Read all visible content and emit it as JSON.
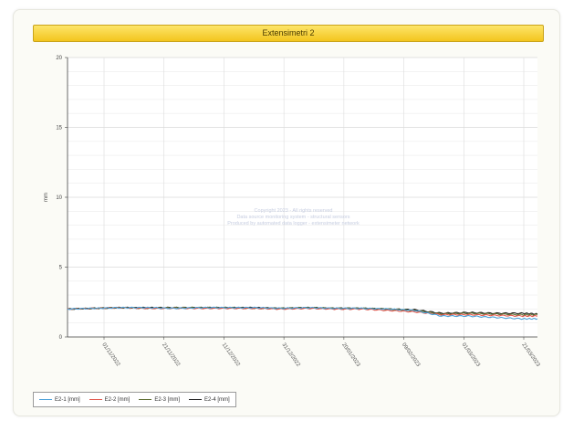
{
  "header": {
    "title": "Extensimetri 2"
  },
  "watermark": {
    "line1": "Copyright 2023 - All rights reserved",
    "line2": "Data source monitoring system - structural sensors",
    "line3": "Produced by automated data logger - extensimeter network"
  },
  "chart_data": {
    "type": "line",
    "title": "Extensimetri 2",
    "xlabel": "",
    "ylabel": "mm",
    "ylim": [
      0,
      20
    ],
    "yticks": [
      0,
      5,
      10,
      15,
      20
    ],
    "xticks": [
      "01/11/2022",
      "21/11/2022",
      "11/12/2022",
      "31/12/2022",
      "20/01/2023",
      "09/02/2023",
      "01/03/2023",
      "21/03/2023"
    ],
    "grid": true,
    "legend_position": "bottom-left",
    "x": [
      0,
      0.5,
      1,
      1.5,
      2,
      2.5,
      3,
      3.5,
      4,
      4.5,
      5,
      5.5,
      6,
      6.5,
      7,
      7.5,
      8,
      8.5,
      8.8
    ],
    "series": [
      {
        "name": "E2-1 [mm]",
        "color": "#4aa0d8",
        "values": [
          2.0,
          2.05,
          2.1,
          2.1,
          2.05,
          2.1,
          2.1,
          2.1,
          2.05,
          2.1,
          2.05,
          2.05,
          2.0,
          1.9,
          1.5,
          1.5,
          1.4,
          1.3,
          1.3
        ]
      },
      {
        "name": "E2-2 [mm]",
        "color": "#e2574c",
        "values": [
          2.0,
          2.05,
          2.1,
          2.05,
          2.05,
          2.05,
          2.05,
          2.05,
          2.0,
          2.05,
          2.0,
          2.0,
          1.9,
          1.8,
          1.6,
          1.6,
          1.55,
          1.5,
          1.5
        ]
      },
      {
        "name": "E2-3 [mm]",
        "color": "#5b6b2e",
        "values": [
          2.0,
          2.05,
          2.1,
          2.05,
          2.1,
          2.1,
          2.1,
          2.05,
          2.05,
          2.1,
          2.05,
          2.05,
          2.0,
          1.9,
          1.65,
          1.7,
          1.65,
          1.6,
          1.6
        ]
      },
      {
        "name": "E2-4 [mm]",
        "color": "#222222",
        "values": [
          2.0,
          2.05,
          2.1,
          2.1,
          2.1,
          2.1,
          2.1,
          2.1,
          2.05,
          2.1,
          2.05,
          2.05,
          2.0,
          1.95,
          1.7,
          1.75,
          1.7,
          1.7,
          1.65
        ]
      }
    ]
  }
}
